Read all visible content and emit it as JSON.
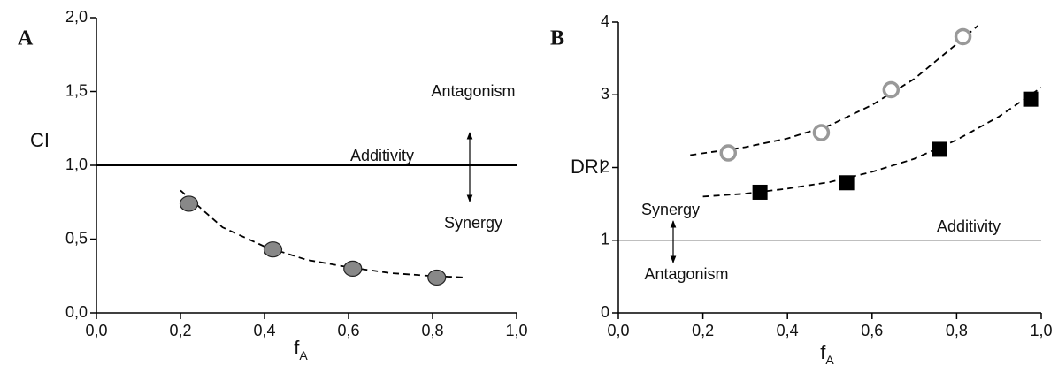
{
  "chart_data": [
    {
      "type": "scatter",
      "panel_label": "A",
      "ylabel": "CI",
      "xlabel": "f",
      "xlabel_subscript": "A",
      "xlim": [
        0,
        1
      ],
      "xticks": [
        {
          "value": 0,
          "label": "0,0"
        },
        {
          "value": 0.2,
          "label": "0,2"
        },
        {
          "value": 0.4,
          "label": "0,4"
        },
        {
          "value": 0.6,
          "label": "0,6"
        },
        {
          "value": 0.8,
          "label": "0,8"
        },
        {
          "value": 1,
          "label": "1,0"
        }
      ],
      "ylim": [
        0,
        2
      ],
      "yticks": [
        {
          "value": 0,
          "label": "0,0"
        },
        {
          "value": 0.5,
          "label": "0,5"
        },
        {
          "value": 1,
          "label": "1,0"
        },
        {
          "value": 1.5,
          "label": "1,5"
        },
        {
          "value": 2,
          "label": "2,0"
        }
      ],
      "hline": 1,
      "annotations": [
        "Antagonism",
        "Additivity",
        "Synergy"
      ],
      "series": [
        {
          "marker": "ellipse",
          "color": "#888888",
          "x": [
            0.22,
            0.42,
            0.61,
            0.81
          ],
          "values": [
            0.74,
            0.43,
            0.3,
            0.24
          ]
        },
        {
          "marker": "dashed-line",
          "color": "#000000",
          "x": [
            0.2,
            0.3,
            0.4,
            0.5,
            0.6,
            0.7,
            0.8,
            0.88
          ],
          "values": [
            0.83,
            0.58,
            0.45,
            0.36,
            0.31,
            0.27,
            0.25,
            0.24
          ]
        }
      ]
    },
    {
      "type": "scatter",
      "panel_label": "B",
      "ylabel": "DRI",
      "xlabel": "f",
      "xlabel_subscript": "A",
      "xlim": [
        0,
        1
      ],
      "xticks": [
        {
          "value": 0,
          "label": "0,0"
        },
        {
          "value": 0.2,
          "label": "0,2"
        },
        {
          "value": 0.4,
          "label": "0,4"
        },
        {
          "value": 0.6,
          "label": "0,6"
        },
        {
          "value": 0.8,
          "label": "0,8"
        },
        {
          "value": 1,
          "label": "1,0"
        }
      ],
      "ylim": [
        0,
        4
      ],
      "yticks": [
        0,
        1,
        2,
        3,
        4
      ],
      "hline": 1,
      "annotations": [
        "Synergy",
        "Additivity",
        "Antagonism"
      ],
      "series": [
        {
          "marker": "open-circle",
          "color": "#999999",
          "x": [
            0.26,
            0.48,
            0.645,
            0.815
          ],
          "values": [
            2.2,
            2.48,
            3.07,
            3.8
          ]
        },
        {
          "marker": "square",
          "color": "#000000",
          "x": [
            0.335,
            0.54,
            0.76,
            0.975
          ],
          "values": [
            1.66,
            1.79,
            2.25,
            2.94
          ]
        },
        {
          "marker": "dashed-line",
          "color": "#000000",
          "x": [
            0.17,
            0.3,
            0.4,
            0.5,
            0.6,
            0.7,
            0.8,
            0.85
          ],
          "values": [
            2.17,
            2.28,
            2.4,
            2.58,
            2.86,
            3.22,
            3.7,
            3.95
          ]
        },
        {
          "marker": "dashed-line",
          "color": "#000000",
          "x": [
            0.2,
            0.3,
            0.4,
            0.5,
            0.6,
            0.7,
            0.8,
            0.9,
            1.0
          ],
          "values": [
            1.6,
            1.64,
            1.71,
            1.8,
            1.94,
            2.12,
            2.38,
            2.7,
            3.1
          ]
        }
      ]
    }
  ]
}
